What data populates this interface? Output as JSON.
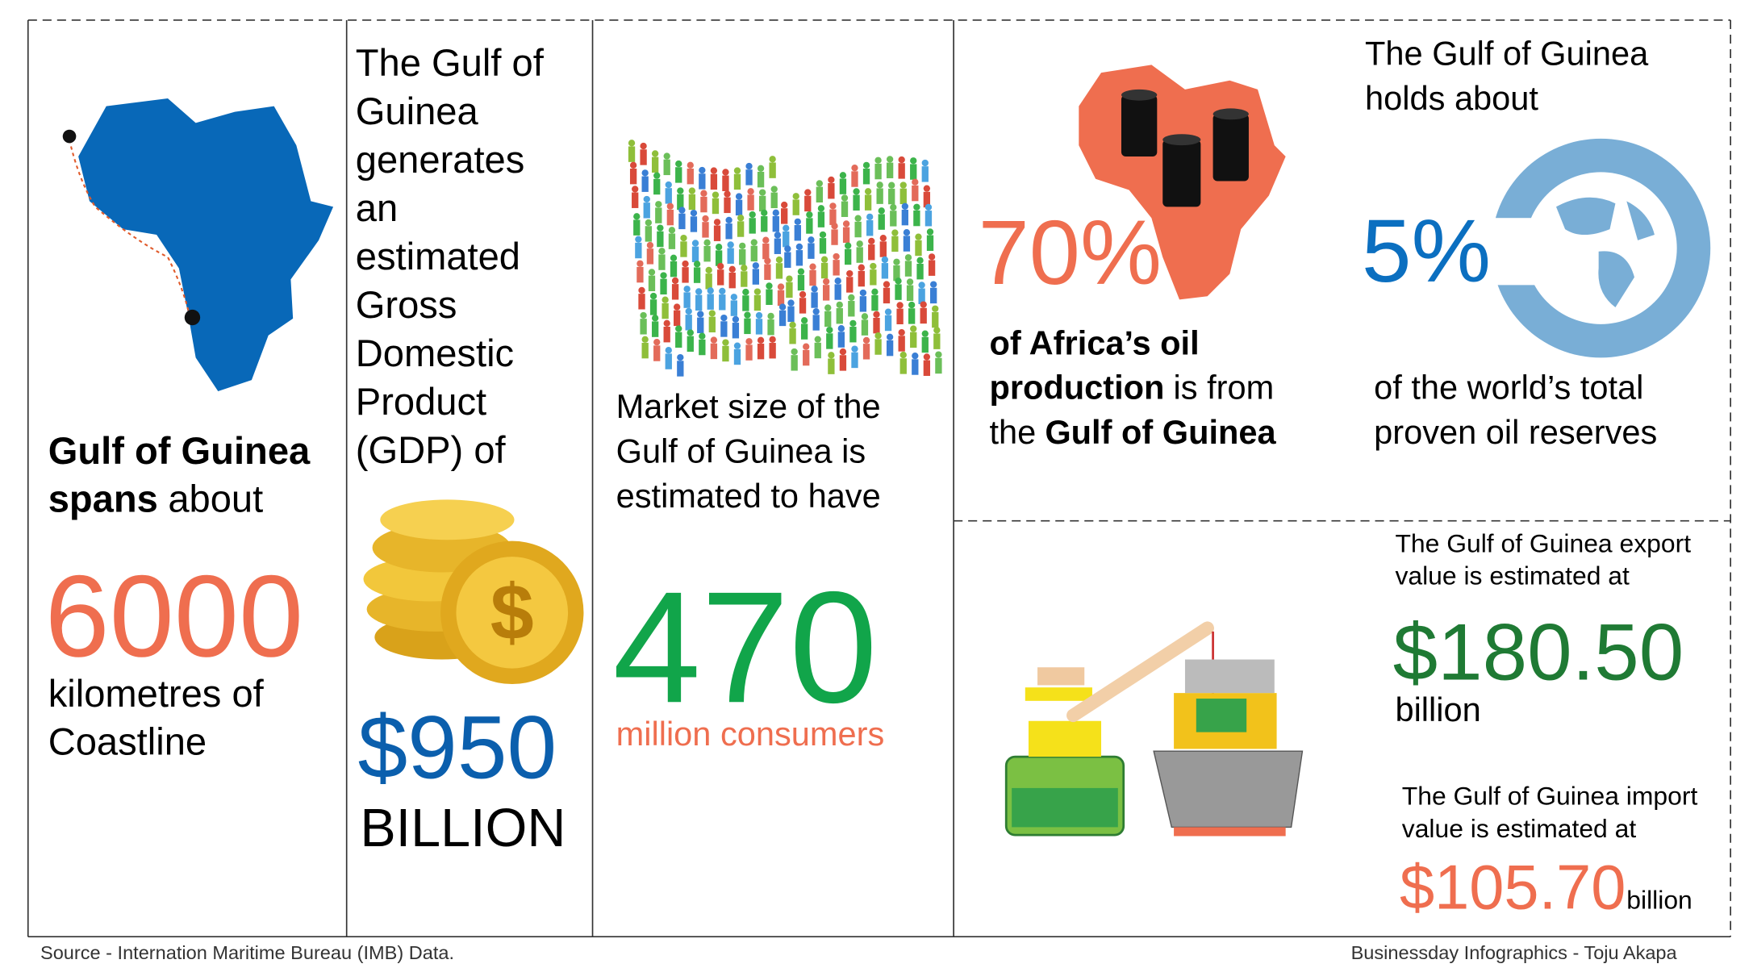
{
  "coastline": {
    "bold_1": "Gulf of Guinea",
    "bold_2": "spans",
    "rest": "about",
    "figure": "6000",
    "caption_lines": [
      "kilometres of",
      "Coastline"
    ]
  },
  "gdp": {
    "lines": [
      "The Gulf of",
      "Guinea",
      "generates",
      "an",
      "estimated",
      "Gross",
      "Domestic",
      "Product",
      "(GDP) of"
    ],
    "figure": "$950",
    "unit": "BILLION"
  },
  "market": {
    "lines": [
      "Market size of the",
      "Gulf of Guinea is",
      "estimated to have"
    ],
    "figure": "470",
    "unit": "million consumers"
  },
  "oil": {
    "figure": "70%",
    "line_1_bold": "of Africa’s oil",
    "line_2_bold": "production",
    "line_2_rest": "is from",
    "line_3_rest": "the",
    "line_3_bold": "Gulf of Guinea"
  },
  "reserves": {
    "lines": [
      "The Gulf of Guinea",
      "holds about"
    ],
    "figure": "5%",
    "caption_lines": [
      "of the world’s total",
      "proven oil reserves"
    ]
  },
  "trade": {
    "export_lines": [
      "The Gulf of Guinea export",
      "value is estimated at"
    ],
    "export_figure": "$180.50",
    "export_unit": "billion",
    "import_lines": [
      "The Gulf of Guinea import",
      "value is estimated at"
    ],
    "import_figure": "$105.70",
    "import_unit": "billion"
  },
  "footer": {
    "source": "Source - Internation Maritime Bureau (IMB) Data.",
    "credit": "Businessday Infographics - Toju Akapa"
  }
}
